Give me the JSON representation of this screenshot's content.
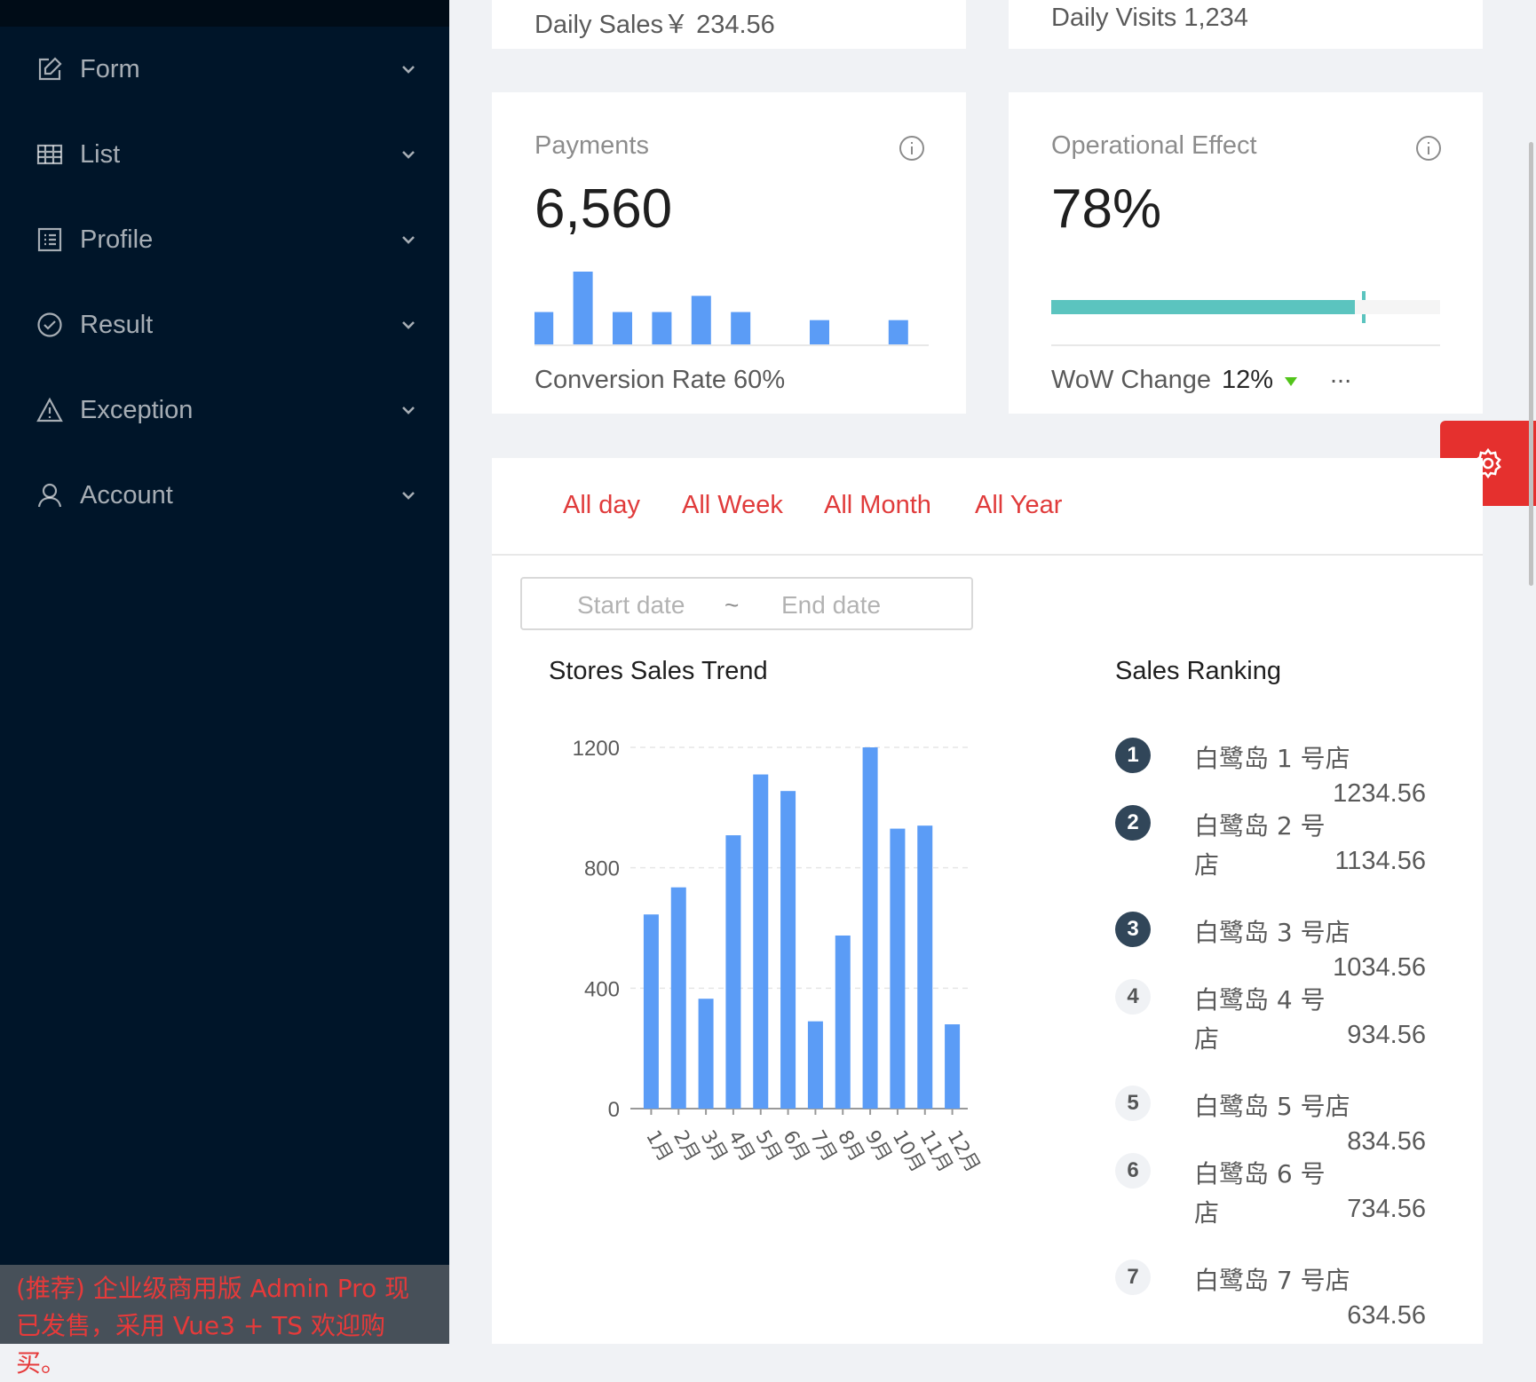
{
  "sidebar": {
    "items": [
      {
        "label": "Form",
        "icon": "form-icon"
      },
      {
        "label": "List",
        "icon": "table-icon"
      },
      {
        "label": "Profile",
        "icon": "profile-icon"
      },
      {
        "label": "Result",
        "icon": "check-circle-icon"
      },
      {
        "label": "Exception",
        "icon": "warning-icon"
      },
      {
        "label": "Account",
        "icon": "user-icon"
      }
    ],
    "promo": "(推荐) 企业级商用版 Admin Pro 现已发售，采用 Vue3 + TS 欢迎购买。"
  },
  "cards_top": {
    "daily_sales": "Daily Sales￥ 234.56",
    "daily_visits": "Daily Visits 1,234"
  },
  "payments": {
    "title": "Payments",
    "value": "6,560",
    "footer": "Conversion Rate 60%",
    "mini_bars": [
      4,
      9,
      4,
      4,
      6,
      4,
      0,
      3,
      0,
      3
    ]
  },
  "operational": {
    "title": "Operational Effect",
    "value": "78%",
    "progress_percent": 78,
    "target_percent": 80,
    "wow_label": "WoW Change",
    "wow_value": "12%",
    "more": "..."
  },
  "tabs": [
    "All day",
    "All Week",
    "All Month",
    "All Year"
  ],
  "range": {
    "start_placeholder": "Start date",
    "separator": "~",
    "end_placeholder": "End date"
  },
  "trend": {
    "title": "Stores Sales Trend"
  },
  "chart_data": {
    "type": "bar",
    "title": "Stores Sales Trend",
    "categories": [
      "1月",
      "2月",
      "3月",
      "4月",
      "5月",
      "6月",
      "7月",
      "8月",
      "9月",
      "10月",
      "11月",
      "12月"
    ],
    "values": [
      645,
      735,
      365,
      908,
      1110,
      1055,
      290,
      575,
      1200,
      930,
      940,
      280
    ],
    "ylim": [
      0,
      1200
    ],
    "yticks": [
      0,
      400,
      800,
      1200
    ],
    "color": "#5b9cf6",
    "gridlines": true
  },
  "ranking": {
    "title": "Sales Ranking",
    "items": [
      {
        "rank": "1",
        "name": "白鹭岛 1 号店",
        "value": "1234.56"
      },
      {
        "rank": "2",
        "name": "白鹭岛 2 号店",
        "value": "1134.56"
      },
      {
        "rank": "3",
        "name": "白鹭岛 3 号店",
        "value": "1034.56"
      },
      {
        "rank": "4",
        "name": "白鹭岛 4 号店",
        "value": "934.56"
      },
      {
        "rank": "5",
        "name": "白鹭岛 5 号店",
        "value": "834.56"
      },
      {
        "rank": "6",
        "name": "白鹭岛 6 号店",
        "value": "734.56"
      },
      {
        "rank": "7",
        "name": "白鹭岛 7 号店",
        "value": "634.56"
      }
    ]
  },
  "colors": {
    "sidebar_bg": "#001529",
    "accent_red": "#e5302e",
    "bar_blue": "#5b9cf6",
    "progress_teal": "#5bc4bf",
    "wow_down_green": "#52c41a"
  }
}
